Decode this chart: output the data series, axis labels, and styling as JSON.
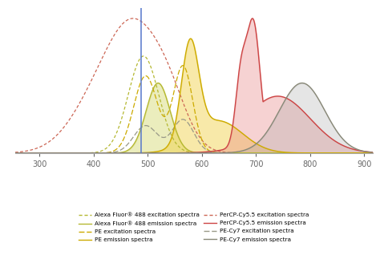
{
  "xlim": [
    255,
    915
  ],
  "ylim": [
    0,
    1.08
  ],
  "xticks": [
    300,
    400,
    500,
    600,
    700,
    800,
    900
  ],
  "laser_line": 488,
  "laser_color": "#5577cc",
  "background_color": "#ffffff",
  "colors": {
    "alexa488": "#b5b832",
    "pe": "#ccaa00",
    "percp": "#cc4444",
    "pecy7": "#888877",
    "percp_ex": "#cc6655"
  }
}
